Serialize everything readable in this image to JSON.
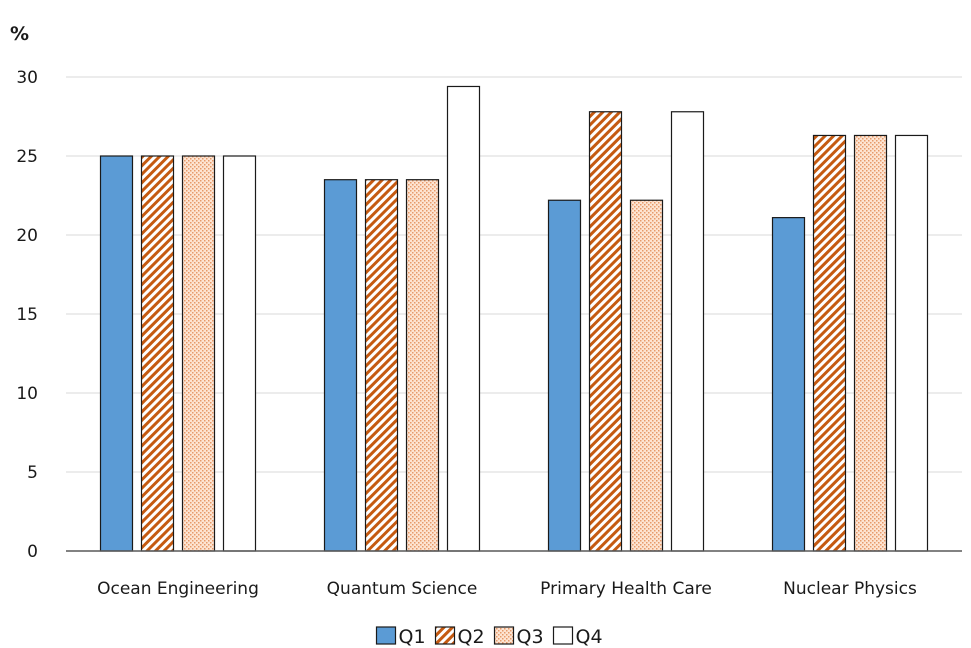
{
  "chart_data": {
    "type": "bar",
    "unit_label": "%",
    "categories": [
      "Ocean Engineering",
      "Quantum Science",
      "Primary Health Care",
      "Nuclear Physics"
    ],
    "series": [
      {
        "name": "Q1",
        "values": [
          25.0,
          23.5,
          22.2,
          21.1
        ],
        "fill": "#5b9bd5",
        "pattern": "solid"
      },
      {
        "name": "Q2",
        "values": [
          25.0,
          23.5,
          27.8,
          26.3
        ],
        "fill": "#c55a11",
        "pattern": "diagonal-hatch"
      },
      {
        "name": "Q3",
        "values": [
          25.0,
          23.5,
          22.2,
          26.3
        ],
        "fill": "#f4b183",
        "pattern": "dots"
      },
      {
        "name": "Q4",
        "values": [
          25.0,
          29.4,
          27.8,
          26.3
        ],
        "fill": "#ffffff",
        "pattern": "none"
      }
    ],
    "yticks": [
      0,
      5,
      10,
      15,
      20,
      25,
      30
    ],
    "ylim": [
      0,
      30
    ],
    "grid": true,
    "legend_position": "bottom"
  }
}
